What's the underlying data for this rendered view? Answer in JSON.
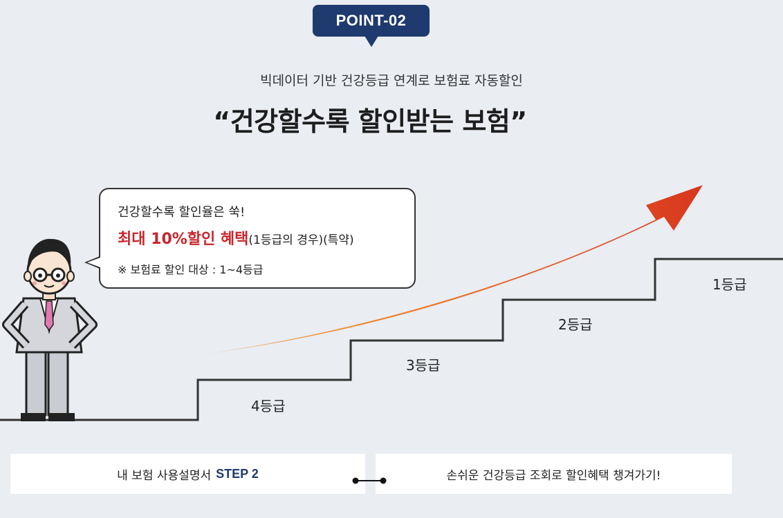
{
  "badge": {
    "label": "POINT-02"
  },
  "subtitle": "빅데이터 기반 건강등급 연계로 보험료 자동할인",
  "headline": "“건강할수록 할인받는 보험”",
  "bubble": {
    "line1": "건강할수록 할인율은 쑥!",
    "highlight": "최대 10%할인 혜택",
    "highlight_suffix": "(1등급의 경우)(특약)",
    "note": "※ 보험료 할인 대상 : 1~4등급"
  },
  "grades": {
    "g4": "4등급",
    "g3": "3등급",
    "g2": "2등급",
    "g1": "1등급"
  },
  "cards": {
    "left_prefix": "내 보험 사용설명서",
    "left_step": "STEP 2",
    "right": "손쉬운 건강등급 조회로 할인혜택 챙겨가기!"
  },
  "colors": {
    "navy": "#1e3a6e",
    "highlight_red": "#c9252c",
    "arrow_start": "#f08a2a",
    "arrow_end": "#d8371f",
    "background": "#eaedf2"
  }
}
